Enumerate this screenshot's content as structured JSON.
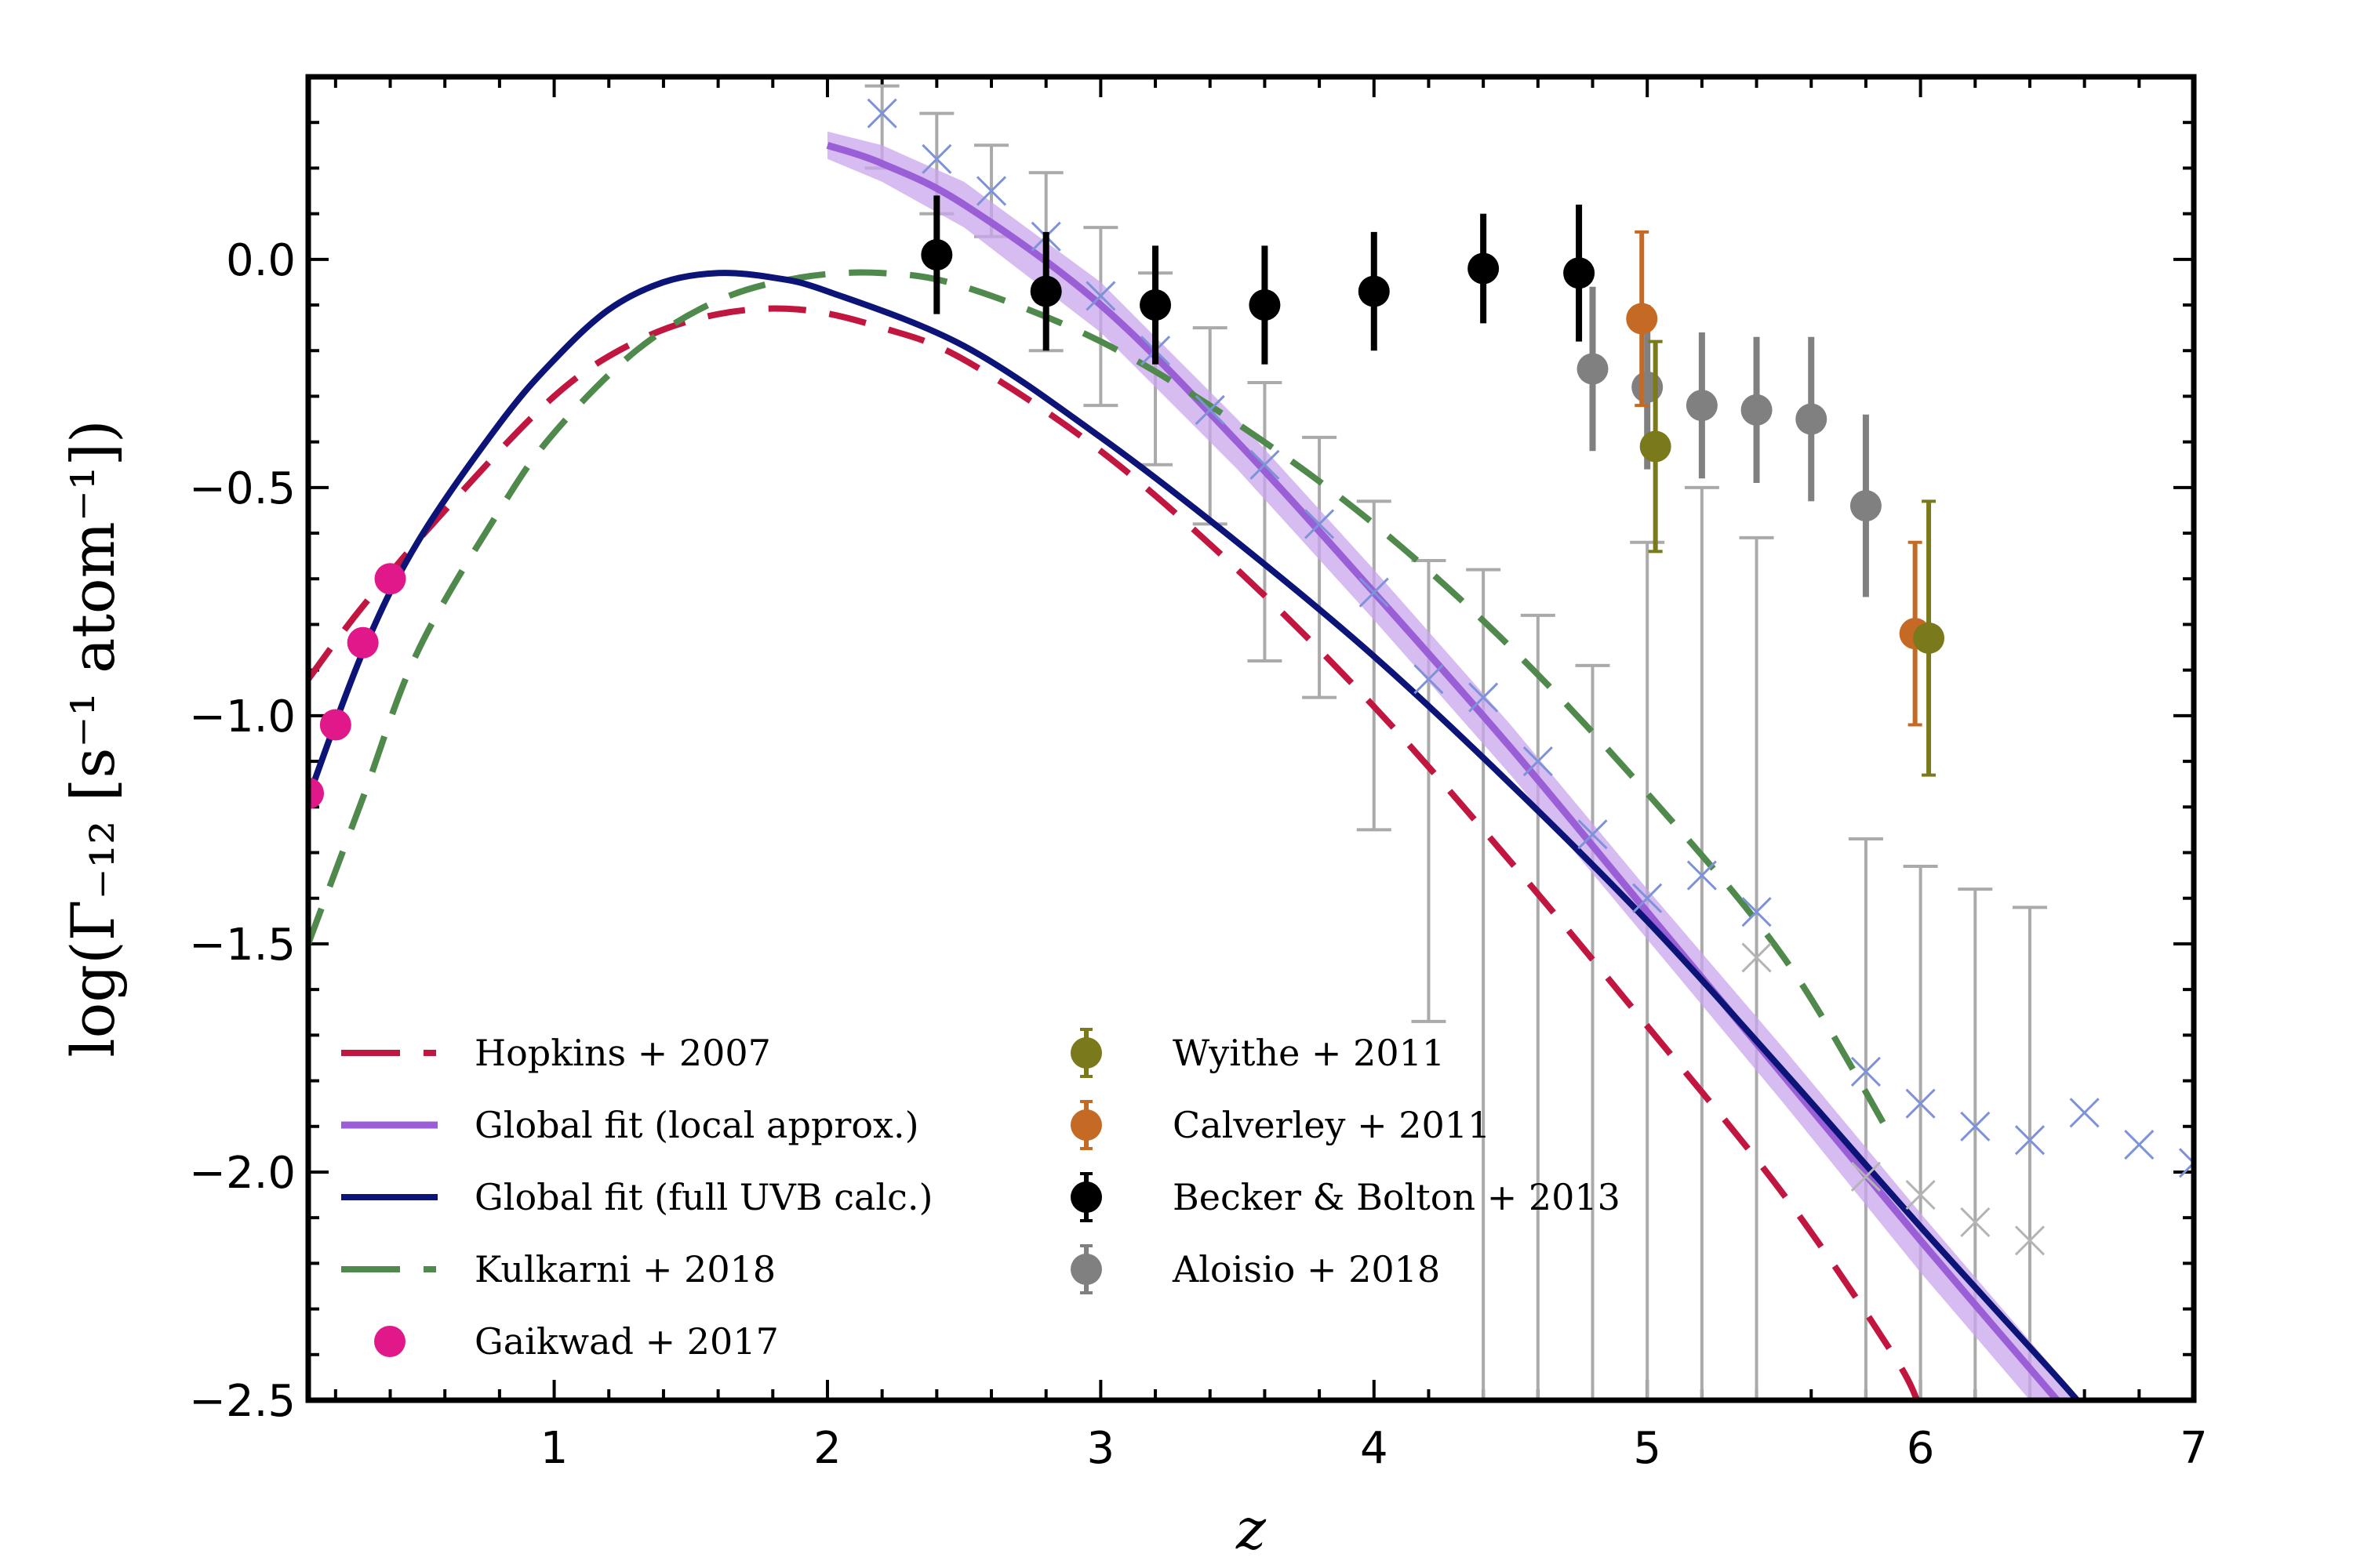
{
  "chart_data": {
    "type": "line",
    "xlabel": "z",
    "ylabel": "log(Γ₋₁₂ [s⁻¹ atom⁻¹])",
    "xlim": [
      0.1,
      7
    ],
    "ylim": [
      -2.5,
      0.4
    ],
    "xticks": [
      1,
      2,
      3,
      4,
      5,
      6,
      7
    ],
    "yticks": [
      0.0,
      -0.5,
      -1.0,
      -1.5,
      -2.0,
      -2.5
    ],
    "xtick_labels": [
      "1",
      "2",
      "3",
      "4",
      "5",
      "6",
      "7"
    ],
    "ytick_labels": [
      "0.0",
      "−0.5",
      "−1.0",
      "−1.5",
      "−2.0",
      "−2.5"
    ],
    "legend_position": "lower-left",
    "legend_left": [
      {
        "key": "hopkins",
        "label": "Hopkins + 2007"
      },
      {
        "key": "global_local",
        "label": "Global fit (local approx.)"
      },
      {
        "key": "global_full",
        "label": "Global fit (full UVB calc.)"
      },
      {
        "key": "kulkarni",
        "label": "Kulkarni + 2018"
      },
      {
        "key": "gaikwad",
        "label": "Gaikwad + 2017"
      }
    ],
    "legend_right": [
      {
        "key": "wyithe",
        "label": "Wyithe + 2011"
      },
      {
        "key": "calverley",
        "label": "Calverley + 2011"
      },
      {
        "key": "becker",
        "label": "Becker & Bolton + 2013"
      },
      {
        "key": "aloisio",
        "label": "Aloisio + 2018"
      }
    ],
    "colors": {
      "hopkins": "#c0163f",
      "global_local": "#9a5fd6",
      "global_local_band": "#c9a6ec",
      "global_full": "#0c1478",
      "kulkarni": "#4f8a4c",
      "gaikwad": "#e0188a",
      "wyithe": "#7a7a1c",
      "calverley": "#c46a24",
      "becker": "#000000",
      "aloisio": "#808080",
      "gray_err": "#aaaaaa",
      "cross_blue": "#7d92d8",
      "cross_gray": "#b4b4b4"
    },
    "series": [
      {
        "key": "hopkins",
        "style": "dashed",
        "x": [
          0.1,
          0.3,
          0.6,
          1.0,
          1.3,
          1.6,
          1.9,
          2.2,
          2.5,
          3.0,
          3.5,
          4.0,
          4.5,
          5.0,
          5.5,
          5.9,
          6.0
        ],
        "y": [
          -0.92,
          -0.76,
          -0.55,
          -0.3,
          -0.18,
          -0.12,
          -0.11,
          -0.15,
          -0.22,
          -0.42,
          -0.68,
          -0.98,
          -1.32,
          -1.68,
          -2.05,
          -2.4,
          -2.52
        ]
      },
      {
        "key": "global_full",
        "style": "solid",
        "x": [
          0.1,
          0.3,
          0.5,
          0.8,
          1.0,
          1.2,
          1.4,
          1.6,
          1.8,
          2.0,
          2.5,
          3.0,
          3.5,
          4.0,
          4.5,
          5.0,
          5.5,
          6.0,
          6.5,
          6.6
        ],
        "y": [
          -1.18,
          -0.86,
          -0.62,
          -0.36,
          -0.22,
          -0.11,
          -0.05,
          -0.03,
          -0.04,
          -0.07,
          -0.19,
          -0.39,
          -0.62,
          -0.87,
          -1.15,
          -1.45,
          -1.78,
          -2.12,
          -2.45,
          -2.52
        ]
      },
      {
        "key": "kulkarni",
        "style": "dashed",
        "x": [
          0.1,
          0.3,
          0.5,
          0.8,
          1.0,
          1.3,
          1.6,
          1.9,
          2.2,
          2.5,
          3.0,
          3.5,
          4.0,
          4.5,
          5.0,
          5.5,
          5.9
        ],
        "y": [
          -1.5,
          -1.18,
          -0.86,
          -0.55,
          -0.38,
          -0.2,
          -0.09,
          -0.04,
          -0.03,
          -0.06,
          -0.18,
          -0.36,
          -0.58,
          -0.85,
          -1.17,
          -1.53,
          -1.93
        ]
      },
      {
        "key": "global_local",
        "style": "band",
        "x": [
          2.0,
          2.2,
          2.5,
          3.0,
          3.5,
          4.0,
          4.5,
          5.0,
          5.5,
          6.0,
          6.5,
          6.6
        ],
        "y": [
          0.25,
          0.21,
          0.12,
          -0.1,
          -0.4,
          -0.73,
          -1.07,
          -1.43,
          -1.79,
          -2.15,
          -2.5,
          -2.57
        ],
        "y_lo": [
          0.22,
          0.17,
          0.07,
          -0.16,
          -0.46,
          -0.79,
          -1.13,
          -1.49,
          -1.85,
          -2.22,
          -2.57,
          -2.64
        ],
        "y_hi": [
          0.28,
          0.25,
          0.17,
          -0.05,
          -0.35,
          -0.68,
          -1.02,
          -1.38,
          -1.73,
          -2.09,
          -2.44,
          -2.51
        ]
      }
    ],
    "points": [
      {
        "key": "gaikwad",
        "x": [
          0.1,
          0.2,
          0.3,
          0.4
        ],
        "y": [
          -1.17,
          -1.02,
          -0.84,
          -0.7
        ]
      },
      {
        "key": "becker",
        "x": [
          2.4,
          2.8,
          3.2,
          3.6,
          4.0,
          4.4,
          4.75
        ],
        "y": [
          0.01,
          -0.07,
          -0.1,
          -0.1,
          -0.07,
          -0.02,
          -0.03
        ],
        "err": [
          0.13,
          0.13,
          0.13,
          0.13,
          0.13,
          0.12,
          0.15
        ]
      },
      {
        "key": "aloisio",
        "x": [
          4.8,
          5.0,
          5.2,
          5.4,
          5.6,
          5.8
        ],
        "y": [
          -0.24,
          -0.28,
          -0.32,
          -0.33,
          -0.35,
          -0.54
        ],
        "err": [
          0.18,
          0.18,
          0.16,
          0.16,
          0.18,
          0.2
        ]
      },
      {
        "key": "calverley",
        "x": [
          4.98,
          5.98
        ],
        "y": [
          -0.13,
          -0.82
        ],
        "err": [
          0.19,
          0.2
        ]
      },
      {
        "key": "wyithe",
        "x": [
          5.03,
          6.03
        ],
        "y": [
          -0.41,
          -0.83
        ],
        "err": [
          0.23,
          0.3
        ]
      },
      {
        "key": "crosses_blue",
        "x": [
          2.2,
          2.4,
          2.6,
          2.8,
          3.0,
          3.2,
          3.4,
          3.6,
          3.8,
          4.0,
          4.2,
          4.4,
          4.6,
          4.8,
          5.0,
          5.2,
          5.4,
          5.8,
          6.0,
          6.2,
          6.4,
          6.6,
          6.8,
          7.0
        ],
        "y": [
          0.32,
          0.22,
          0.15,
          0.05,
          -0.08,
          -0.2,
          -0.33,
          -0.45,
          -0.58,
          -0.73,
          -0.92,
          -0.96,
          -1.1,
          -1.26,
          -1.4,
          -1.35,
          -1.43,
          -1.78,
          -1.85,
          -1.9,
          -1.93,
          -1.87,
          -1.94,
          -1.98
        ]
      },
      {
        "key": "crosses_gray",
        "x": [
          5.4,
          5.8,
          6.0,
          6.2,
          6.4
        ],
        "y": [
          -1.53,
          -2.01,
          -2.05,
          -2.11,
          -2.15
        ]
      },
      {
        "key": "gray_errorbars",
        "x": [
          2.2,
          2.4,
          2.6,
          2.8,
          3.0,
          3.2,
          3.4,
          3.6,
          3.8,
          4.0,
          4.2,
          4.4,
          4.6,
          4.8,
          5.0,
          5.2,
          5.4,
          5.8,
          6.0,
          6.2,
          6.4
        ],
        "lo": [
          0.2,
          0.1,
          0.05,
          -0.2,
          -0.32,
          -0.45,
          -0.58,
          -0.88,
          -0.96,
          -1.25,
          -1.67,
          -2.5,
          -2.5,
          -2.5,
          -2.5,
          -2.5,
          -2.5,
          -2.5,
          -2.5,
          -2.5,
          -2.5
        ],
        "hi": [
          0.38,
          0.32,
          0.25,
          0.19,
          0.07,
          -0.03,
          -0.15,
          -0.27,
          -0.39,
          -0.53,
          -0.66,
          -0.68,
          -0.78,
          -0.89,
          -0.62,
          -0.5,
          -0.61,
          -1.27,
          -1.33,
          -1.38,
          -1.42
        ]
      }
    ]
  }
}
